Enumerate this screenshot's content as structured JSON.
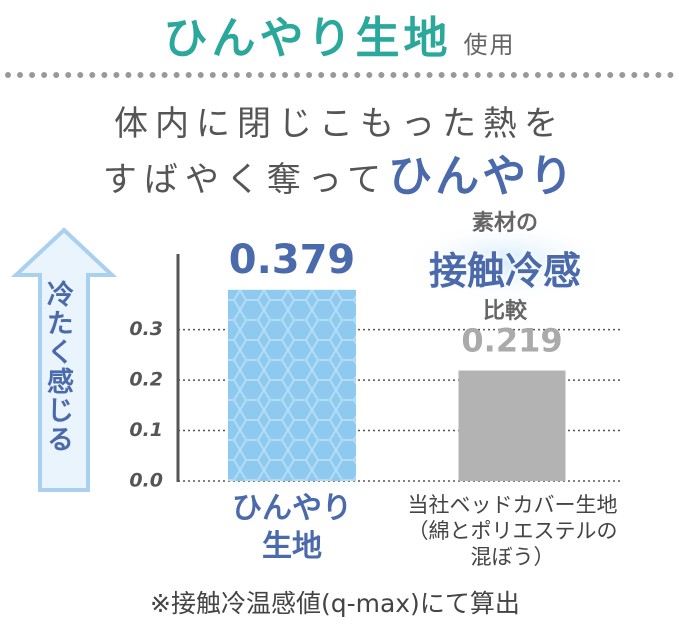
{
  "header": {
    "title": "ひんやり生地",
    "title_suffix": "使用"
  },
  "subtitle": {
    "line1": "体内に閉じこもった熱を",
    "line2_lead": "すばやく奪って",
    "line2_emphasis": "ひんやり"
  },
  "arrow_label": "冷たく感じる",
  "badge": {
    "top": "素材の",
    "main": "接触冷感",
    "bottom": "比較"
  },
  "footnote": "※接触冷温感値(q-max)にて算出",
  "chart_data": {
    "type": "bar",
    "categories": [
      "ひんやり生地",
      "当社ベッドカバー生地（綿とポリエステルの混ぼう）"
    ],
    "values": [
      0.379,
      0.219
    ],
    "colors": [
      "#8ec9f0",
      "#b3b3b3"
    ],
    "ylim": [
      0,
      0.45
    ],
    "yticks": [
      {
        "value": 0,
        "label": "0.0"
      },
      0.1,
      0.2,
      0.3
    ],
    "grid": true
  }
}
